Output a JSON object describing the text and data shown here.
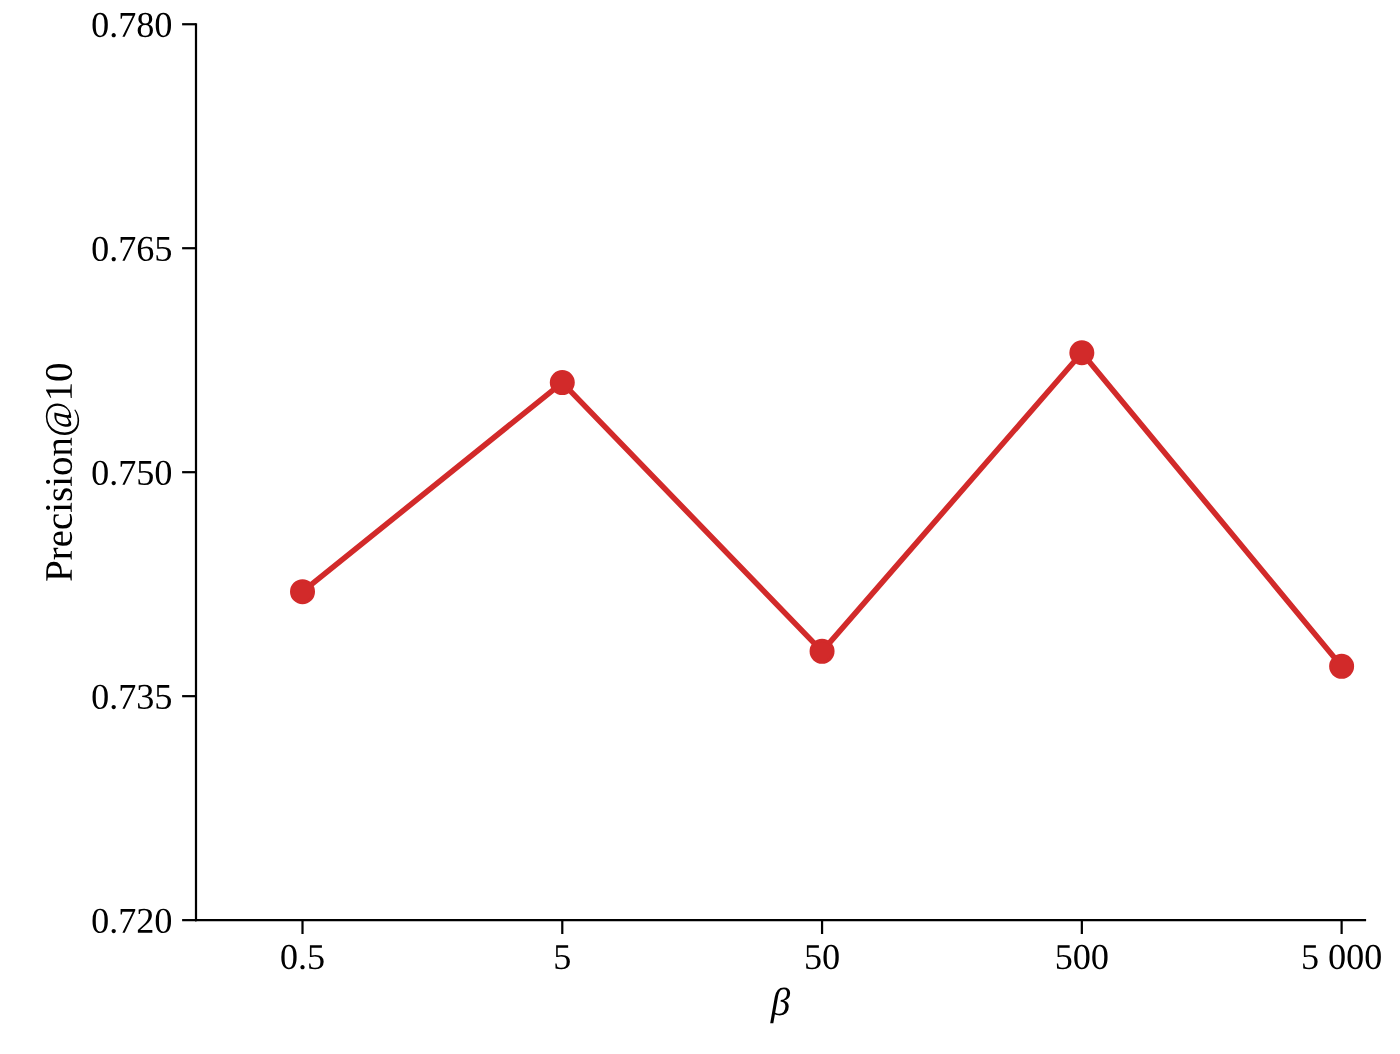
{
  "chart_data": {
    "type": "line",
    "xlabel": "β",
    "ylabel": "Precision@10",
    "categories": [
      "0.5",
      "5",
      "50",
      "500",
      "5 000"
    ],
    "series": [
      {
        "color": "#d22a2a",
        "values": [
          0.742,
          0.756,
          0.738,
          0.758,
          0.737
        ]
      }
    ],
    "ylim": [
      0.72,
      0.78
    ],
    "yticks": [
      {
        "value": 0.72,
        "label": "0.720"
      },
      {
        "value": 0.735,
        "label": "0.735"
      },
      {
        "value": 0.75,
        "label": "0.750"
      },
      {
        "value": 0.765,
        "label": "0.765"
      },
      {
        "value": 0.78,
        "label": "0.780"
      }
    ],
    "marker": "circle",
    "line_style": "solid",
    "grid": false
  }
}
